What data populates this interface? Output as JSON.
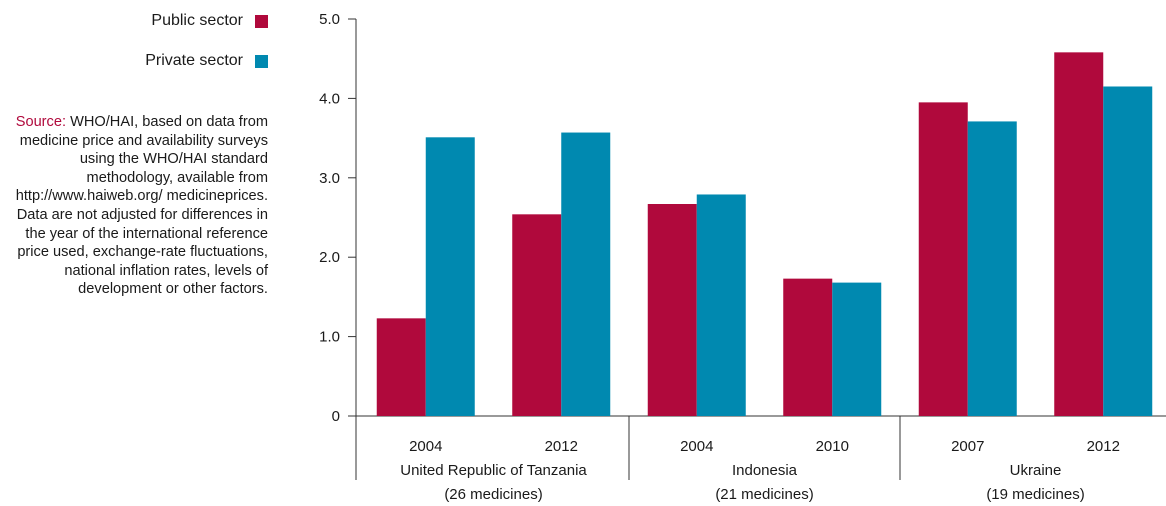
{
  "legend": {
    "public_label": "Public sector",
    "private_label": "Private sector"
  },
  "source": {
    "label": "Source:",
    "text": "WHO/HAI, based on data from medicine price and availability surveys using the WHO/HAI standard methodology, available from http://www.haiweb.org/ medicineprices. Data are not adjusted for differences in the year of the international reference price used, exchange-rate fluctuations, national inflation rates, levels of development or other factors."
  },
  "colors": {
    "public": "#b0093c",
    "private": "#0089b0",
    "axis": "#333333"
  },
  "chart_data": {
    "type": "bar",
    "title": "",
    "xlabel": "",
    "ylabel": "",
    "ylim": [
      0,
      5
    ],
    "ytick_labels": [
      "0",
      "1.0",
      "2.0",
      "3.0",
      "4.0",
      "5.0"
    ],
    "categories": [
      "2004",
      "2012",
      "2004",
      "2010",
      "2007",
      "2012"
    ],
    "groups": [
      {
        "name": "United Republic of Tanzania",
        "note": "(26 medicines)",
        "categories": [
          "2004",
          "2012"
        ]
      },
      {
        "name": "Indonesia",
        "note": "(21 medicines)",
        "categories": [
          "2004",
          "2010"
        ]
      },
      {
        "name": "Ukraine",
        "note": "(19 medicines)",
        "categories": [
          "2007",
          "2012"
        ]
      }
    ],
    "series": [
      {
        "name": "Public sector",
        "values": [
          1.23,
          2.54,
          2.67,
          1.73,
          3.95,
          4.58
        ]
      },
      {
        "name": "Private sector",
        "values": [
          3.51,
          3.57,
          2.79,
          1.68,
          3.71,
          4.15
        ]
      }
    ],
    "grid": false,
    "legend_position": "top-left"
  }
}
